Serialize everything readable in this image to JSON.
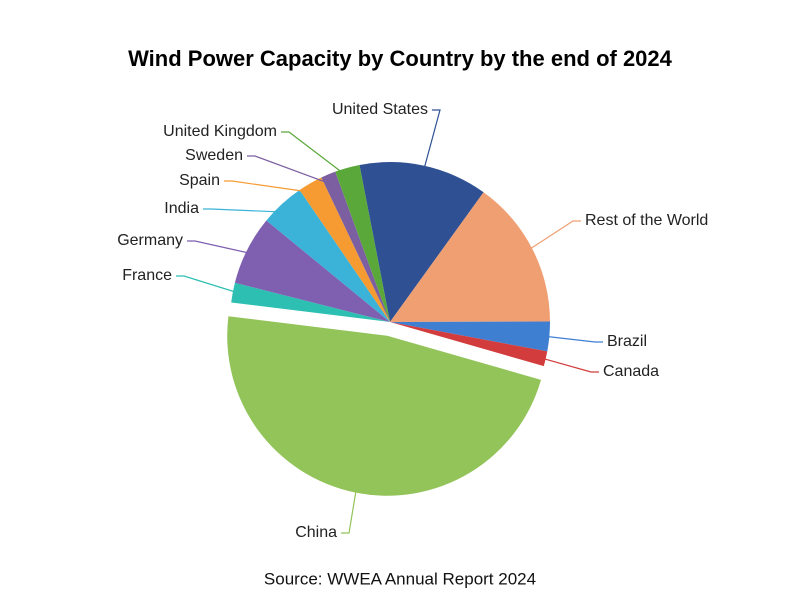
{
  "chart_data": {
    "type": "pie",
    "title": "Wind Power Capacity by Country by the end of 2024",
    "source": "Source: WWEA Annual Report 2024",
    "categories": [
      "United States",
      "Rest of the World",
      "Brazil",
      "Canada",
      "China",
      "France",
      "Germany",
      "India",
      "Spain",
      "Sweden",
      "United Kingdom"
    ],
    "values": [
      13,
      15,
      3,
      1.5,
      47.5,
      2,
      7,
      4.5,
      2.5,
      1.5,
      2.5
    ],
    "colors": [
      "#2f5193",
      "#ef9f72",
      "#3f7fd2",
      "#d23c3c",
      "#93c45a",
      "#2dbfb2",
      "#7e5fb0",
      "#3bb2d8",
      "#f59b32",
      "#7c5fa0",
      "#5aa83a"
    ],
    "exploded": "China"
  }
}
